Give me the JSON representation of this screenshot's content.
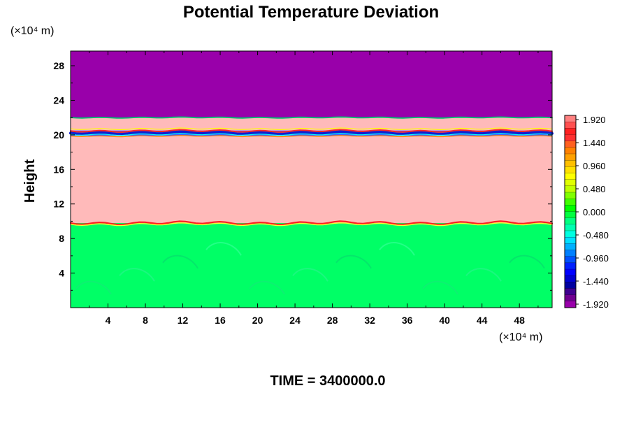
{
  "chart_data": {
    "type": "heatmap",
    "title": "Potential Temperature Deviation",
    "ylabel": "Height",
    "x_unit_label": "(×10⁴ m)",
    "y_unit_label": "(×10⁴ m)",
    "time_label": "TIME = 3400000.0",
    "xlim": [
      0,
      51.5
    ],
    "ylim": [
      0,
      29.7
    ],
    "x_ticks": [
      4,
      8,
      12,
      16,
      20,
      24,
      28,
      32,
      36,
      40,
      44,
      48
    ],
    "y_ticks": [
      4,
      8,
      12,
      16,
      20,
      24,
      28
    ],
    "colorbar": {
      "min": -1.92,
      "max": 1.92,
      "tick_values": [
        1.92,
        1.44,
        0.96,
        0.48,
        0.0,
        -0.48,
        -0.96,
        -1.44,
        -1.92
      ],
      "tick_labels": [
        "1.920",
        "1.440",
        "0.960",
        "0.480",
        "0.000",
        "-0.480",
        "-0.960",
        "-1.440",
        "-1.920"
      ],
      "colors_top_to_bottom": [
        "#ff8080",
        "#ff5050",
        "#ff2020",
        "#ff3030",
        "#ff6020",
        "#ff8000",
        "#ffa000",
        "#ffc000",
        "#ffe000",
        "#ffff00",
        "#e0ff00",
        "#c0ff00",
        "#80ff00",
        "#40ff00",
        "#00ff00",
        "#00ff40",
        "#00ff80",
        "#00ffb0",
        "#00ffe0",
        "#00e0ff",
        "#00b0ff",
        "#0080ff",
        "#0050ff",
        "#0020ff",
        "#0000ff",
        "#0000d0",
        "#0000a0",
        "#400090",
        "#700090",
        "#9900aa"
      ]
    },
    "layers": [
      {
        "name": "upper",
        "y_from": 22.0,
        "y_to": 29.7,
        "color": "#9900aa"
      },
      {
        "name": "upper-pink",
        "y_from": 20.5,
        "y_to": 22.0,
        "color": "#ffbaba"
      },
      {
        "name": "thin-band",
        "y_from": 19.9,
        "y_to": 20.5,
        "color": "#4060ff"
      },
      {
        "name": "middle-pink",
        "y_from": 9.8,
        "y_to": 19.9,
        "color": "#ffbaba"
      },
      {
        "name": "lower",
        "y_from": 0.0,
        "y_to": 9.8,
        "color": "#00ff66"
      }
    ]
  }
}
